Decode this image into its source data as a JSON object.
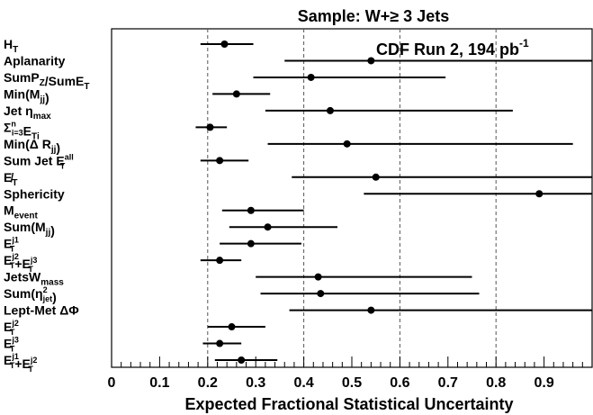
{
  "chart_data": {
    "type": "scatter",
    "title": "Sample: W+≥ 3 Jets",
    "annotation": "CDF Run 2, 194 pb⁻¹",
    "xlabel": "Expected Fractional Statistical Uncertainty",
    "xlim": [
      0,
      1.0
    ],
    "x_ticks": [
      "0",
      "0.1",
      "0.2",
      "0.3",
      "0.4",
      "0.5",
      "0.6",
      "0.7",
      "0.8",
      "0.9"
    ],
    "dashed_gridlines_x": [
      0.2,
      0.4,
      0.6,
      0.8
    ],
    "variables": [
      {
        "label": "H",
        "sub": "T",
        "sup": "",
        "value": 0.235,
        "low": 0.185,
        "high": 0.295
      },
      {
        "label": "Aplanarity",
        "sub": "",
        "sup": "",
        "value": 0.54,
        "low": 0.36,
        "high": 1.0
      },
      {
        "label": "SumP",
        "sub": "Z",
        "sup": "",
        "label2": "/SumE",
        "sub2": "T",
        "value": 0.415,
        "low": 0.295,
        "high": 0.695
      },
      {
        "label": "Min(M",
        "sub": "jj",
        "sup": "",
        "label2": ")",
        "value": 0.26,
        "low": 0.21,
        "high": 0.33
      },
      {
        "label": "Jet η",
        "sub": "max",
        "sup": "",
        "value": 0.455,
        "low": 0.32,
        "high": 0.835
      },
      {
        "label": "Σ",
        "sub": "i=3",
        "sup": "n",
        "label2": "E",
        "sub2": "Ti",
        "value": 0.205,
        "low": 0.175,
        "high": 0.24
      },
      {
        "label": "Min(Δ R",
        "sub": "jj",
        "sup": "",
        "label2": ")",
        "value": 0.49,
        "low": 0.325,
        "high": 0.96
      },
      {
        "label": "Sum Jet E",
        "sub": "T",
        "sup": "all",
        "value": 0.225,
        "low": 0.185,
        "high": 0.285
      },
      {
        "label": "E̸",
        "sub": "T",
        "sup": "",
        "value": 0.55,
        "low": 0.375,
        "high": 1.0
      },
      {
        "label": "Sphericity",
        "sub": "",
        "sup": "",
        "value": 0.89,
        "low": 0.525,
        "high": 1.0
      },
      {
        "label": "M",
        "sub": "event",
        "sup": "",
        "value": 0.29,
        "low": 0.23,
        "high": 0.4
      },
      {
        "label": "Sum(M",
        "sub": "jj",
        "sup": "",
        "label2": ")",
        "value": 0.325,
        "low": 0.245,
        "high": 0.47
      },
      {
        "label": "E",
        "sub": "T",
        "sup": "j1",
        "value": 0.29,
        "low": 0.225,
        "high": 0.395
      },
      {
        "label": "E",
        "sub": "T",
        "sup": "j2",
        "label2": "+E",
        "sub2": "T",
        "sup2": "j3",
        "value": 0.225,
        "low": 0.185,
        "high": 0.27
      },
      {
        "label": "JetsW",
        "sub": "mass",
        "sup": "",
        "value": 0.43,
        "low": 0.3,
        "high": 0.75
      },
      {
        "label": "Sum(η",
        "sub": "jet",
        "sup": "2",
        "label2": ")",
        "value": 0.435,
        "low": 0.31,
        "high": 0.765
      },
      {
        "label": "Lept-Met ΔΦ",
        "sub": "",
        "sup": "",
        "value": 0.54,
        "low": 0.37,
        "high": 1.0
      },
      {
        "label": "E",
        "sub": "T",
        "sup": "j2",
        "value": 0.25,
        "low": 0.2,
        "high": 0.32
      },
      {
        "label": "E",
        "sub": "T",
        "sup": "j3",
        "value": 0.225,
        "low": 0.19,
        "high": 0.27
      },
      {
        "label": "E",
        "sub": "T",
        "sup": "j1",
        "label2": "+E",
        "sub2": "T",
        "sup2": "j2",
        "value": 0.27,
        "low": 0.215,
        "high": 0.345
      }
    ]
  }
}
